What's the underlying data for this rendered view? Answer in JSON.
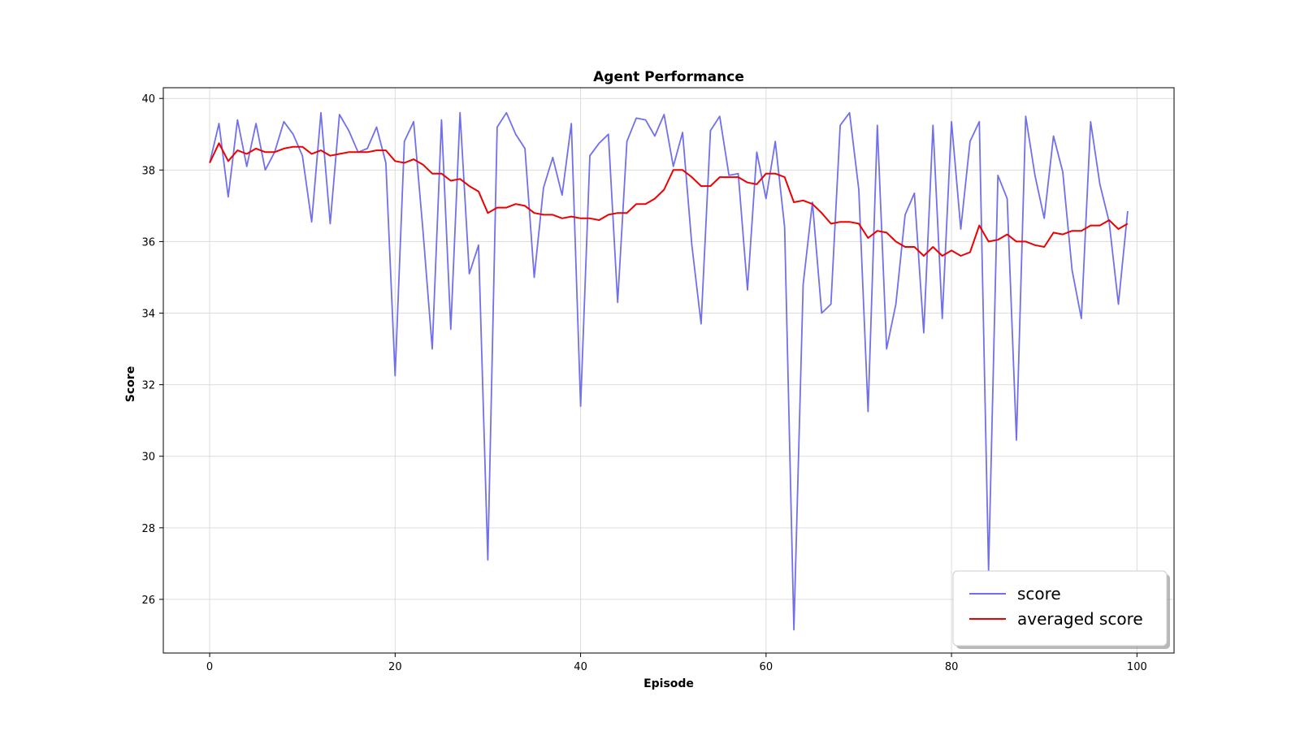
{
  "chart_data": {
    "type": "line",
    "title": "Agent Performance",
    "xlabel": "Episode",
    "ylabel": "Score",
    "xlim": [
      -5,
      104
    ],
    "ylim": [
      24.5,
      40.3
    ],
    "xticks": [
      0,
      20,
      40,
      60,
      80,
      100
    ],
    "yticks": [
      26,
      28,
      30,
      32,
      34,
      36,
      38,
      40
    ],
    "grid": true,
    "legend_position": "lower-right",
    "x": [
      0,
      1,
      2,
      3,
      4,
      5,
      6,
      7,
      8,
      9,
      10,
      11,
      12,
      13,
      14,
      15,
      16,
      17,
      18,
      19,
      20,
      21,
      22,
      23,
      24,
      25,
      26,
      27,
      28,
      29,
      30,
      31,
      32,
      33,
      34,
      35,
      36,
      37,
      38,
      39,
      40,
      41,
      42,
      43,
      44,
      45,
      46,
      47,
      48,
      49,
      50,
      51,
      52,
      53,
      54,
      55,
      56,
      57,
      58,
      59,
      60,
      61,
      62,
      63,
      64,
      65,
      66,
      67,
      68,
      69,
      70,
      71,
      72,
      73,
      74,
      75,
      76,
      77,
      78,
      79,
      80,
      81,
      82,
      83,
      84,
      85,
      86,
      87,
      88,
      89,
      90,
      91,
      92,
      93,
      94,
      95,
      96,
      97,
      98,
      99
    ],
    "series": [
      {
        "name": "score",
        "color": "#7070ee",
        "values": [
          38.2,
          39.3,
          37.25,
          39.4,
          38.1,
          39.3,
          38.0,
          38.5,
          39.35,
          39.0,
          38.4,
          36.55,
          39.6,
          36.5,
          39.55,
          39.1,
          38.5,
          38.6,
          39.2,
          38.2,
          32.25,
          38.8,
          39.35,
          36.3,
          33.0,
          39.4,
          33.55,
          39.6,
          35.1,
          35.9,
          27.1,
          39.2,
          39.6,
          39.0,
          38.6,
          35.0,
          37.5,
          38.35,
          37.3,
          39.3,
          31.4,
          38.4,
          38.75,
          39.0,
          34.3,
          38.8,
          39.45,
          39.4,
          38.95,
          39.55,
          38.1,
          39.05,
          35.9,
          33.7,
          39.1,
          39.5,
          37.85,
          37.9,
          34.65,
          38.5,
          37.2,
          38.8,
          36.4,
          25.15,
          34.8,
          37.1,
          34.0,
          34.25,
          39.25,
          39.6,
          37.45,
          31.25,
          39.25,
          33.0,
          34.25,
          36.75,
          37.35,
          33.45,
          39.25,
          33.85,
          39.35,
          36.35,
          38.8,
          39.35,
          26.8,
          37.85,
          37.2,
          30.45,
          39.5,
          37.85,
          36.65,
          38.95,
          37.95,
          35.2,
          33.85,
          39.35,
          37.6,
          36.55,
          34.25,
          36.85
        ]
      },
      {
        "name": "averaged score",
        "color": "#ee0000",
        "values": [
          38.2,
          38.75,
          38.25,
          38.55,
          38.45,
          38.6,
          38.5,
          38.5,
          38.6,
          38.65,
          38.65,
          38.45,
          38.55,
          38.4,
          38.45,
          38.5,
          38.5,
          38.5,
          38.55,
          38.55,
          38.25,
          38.2,
          38.3,
          38.15,
          37.9,
          37.9,
          37.7,
          37.75,
          37.55,
          37.4,
          36.8,
          36.95,
          36.95,
          37.05,
          37.0,
          36.8,
          36.75,
          36.75,
          36.65,
          36.7,
          36.65,
          36.65,
          36.6,
          36.75,
          36.8,
          36.8,
          37.05,
          37.05,
          37.2,
          37.45,
          38.0,
          38.0,
          37.8,
          37.55,
          37.55,
          37.8,
          37.8,
          37.8,
          37.65,
          37.6,
          37.9,
          37.9,
          37.8,
          37.1,
          37.15,
          37.05,
          36.8,
          36.5,
          36.55,
          36.55,
          36.5,
          36.1,
          36.3,
          36.25,
          36.0,
          35.85,
          35.85,
          35.6,
          35.85,
          35.6,
          35.75,
          35.6,
          35.7,
          36.45,
          36.0,
          36.05,
          36.2,
          36.0,
          36.0,
          35.9,
          35.85,
          36.25,
          36.2,
          36.3,
          36.3,
          36.45,
          36.45,
          36.6,
          36.35,
          36.5
        ]
      }
    ]
  }
}
